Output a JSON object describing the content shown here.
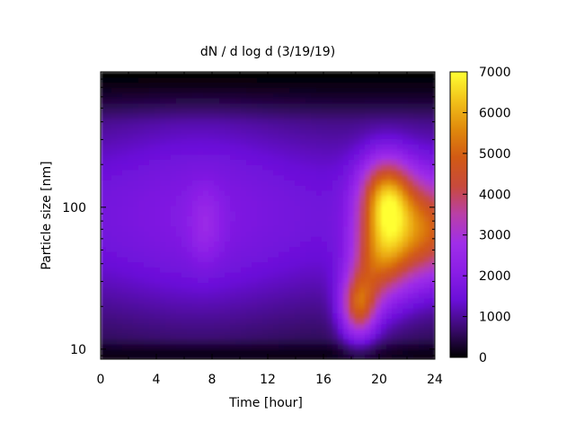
{
  "chart_data": {
    "type": "heatmap",
    "title": "dN / d log d (3/19/19)",
    "xlabel": "Time [hour]",
    "ylabel": "Particle size [nm]",
    "x_range": [
      0,
      24
    ],
    "x_ticks": [
      0,
      4,
      8,
      12,
      16,
      20,
      24
    ],
    "y_scale": "log",
    "y_range": [
      8.5,
      900
    ],
    "y_tick_labels": [
      {
        "value": 10,
        "label": "10"
      },
      {
        "value": 100,
        "label": "100"
      }
    ],
    "colorbar": {
      "range": [
        0,
        7000
      ],
      "ticks": [
        0,
        1000,
        2000,
        3000,
        4000,
        5000,
        6000,
        7000
      ],
      "palette": [
        "#000000",
        "#3a0a6e",
        "#6a0fd8",
        "#8a1ee6",
        "#a02ee8",
        "#b93fa8",
        "#c84a3c",
        "#d25a14",
        "#e08a0c",
        "#f2c21a",
        "#ffff33"
      ]
    },
    "features": [
      {
        "time_hour": 18.5,
        "size_nm": 20,
        "value": 5000
      },
      {
        "time_hour": 20.5,
        "size_nm": 60,
        "value": 5600
      },
      {
        "time_hour": 20.5,
        "size_nm": 130,
        "value": 4500
      },
      {
        "time_hour": 23.5,
        "size_nm": 70,
        "value": 5200
      },
      {
        "time_hour": 7.5,
        "size_nm": 75,
        "value": 2300
      }
    ]
  }
}
